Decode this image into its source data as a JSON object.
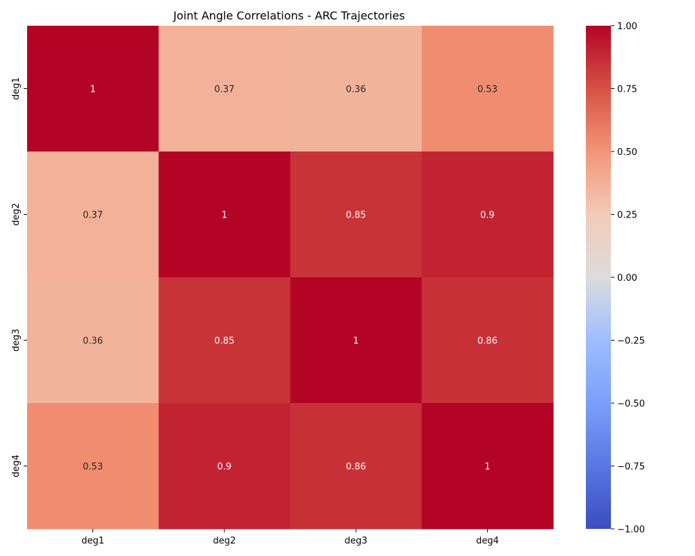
{
  "chart_data": {
    "type": "heatmap",
    "title": "Joint Angle Correlations - ARC Trajectories",
    "xlabel": "",
    "ylabel": "",
    "x_categories": [
      "deg1",
      "deg2",
      "deg3",
      "deg4"
    ],
    "y_categories": [
      "deg1",
      "deg2",
      "deg3",
      "deg4"
    ],
    "values": [
      [
        1,
        0.37,
        0.36,
        0.53
      ],
      [
        0.37,
        1,
        0.85,
        0.9
      ],
      [
        0.36,
        0.85,
        1,
        0.86
      ],
      [
        0.53,
        0.9,
        0.86,
        1
      ]
    ],
    "value_labels": [
      [
        "1",
        "0.37",
        "0.36",
        "0.53"
      ],
      [
        "0.37",
        "1",
        "0.85",
        "0.9"
      ],
      [
        "0.36",
        "0.85",
        "1",
        "0.86"
      ],
      [
        "0.53",
        "0.9",
        "0.86",
        "1"
      ]
    ],
    "colormap": "coolwarm",
    "vmin": -1.0,
    "vmax": 1.0,
    "colorbar_ticks": [
      1.0,
      0.75,
      0.5,
      0.25,
      0.0,
      -0.25,
      -0.5,
      -0.75,
      -1.0
    ],
    "colorbar_tick_labels": [
      "1.00",
      "0.75",
      "0.50",
      "0.25",
      "0.00",
      "−0.25",
      "−0.50",
      "−0.75",
      "−1.00"
    ],
    "colorbar_position": "right"
  }
}
